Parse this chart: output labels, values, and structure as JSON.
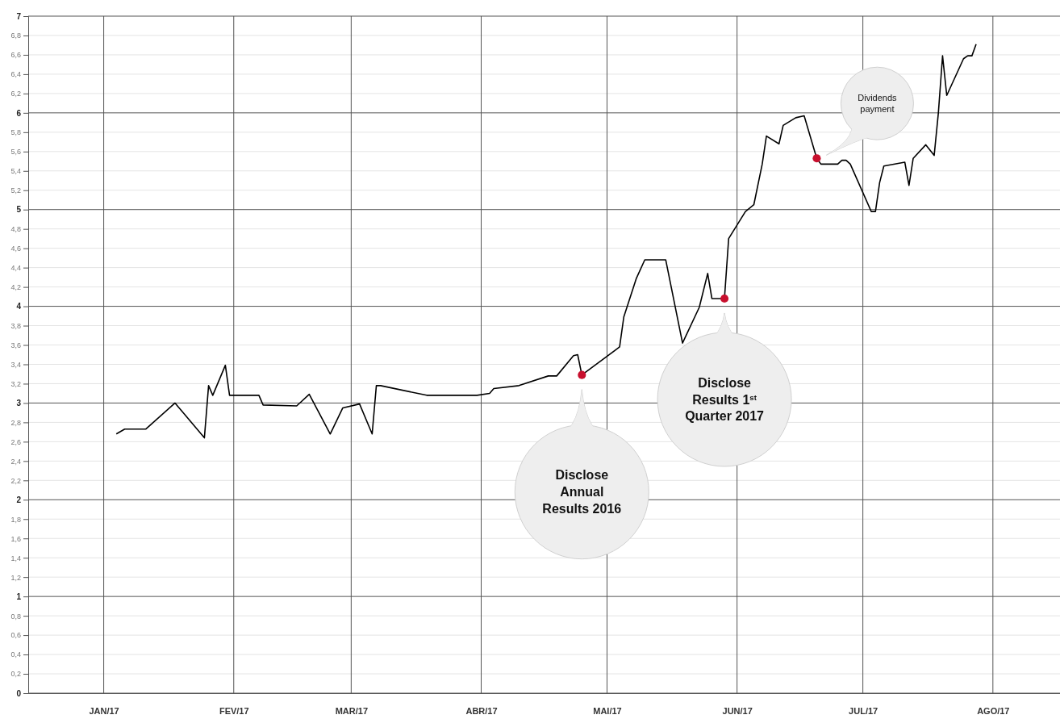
{
  "chart_data": {
    "type": "line",
    "x": [
      "2017-01-04",
      "2017-01-06",
      "2017-01-11",
      "2017-01-18",
      "2017-01-25",
      "2017-01-26",
      "2017-01-27",
      "2017-01-30",
      "2017-01-31",
      "2017-02-07",
      "2017-02-08",
      "2017-02-16",
      "2017-02-19",
      "2017-02-24",
      "2017-02-27",
      "2017-03-03",
      "2017-03-06",
      "2017-03-07",
      "2017-03-08",
      "2017-03-19",
      "2017-03-22",
      "2017-03-31",
      "2017-04-03",
      "2017-04-04",
      "2017-04-10",
      "2017-04-17",
      "2017-04-19",
      "2017-04-23",
      "2017-04-24",
      "2017-04-25",
      "2017-05-04",
      "2017-05-05",
      "2017-05-08",
      "2017-05-10",
      "2017-05-15",
      "2017-05-19",
      "2017-05-23",
      "2017-05-25",
      "2017-05-26",
      "2017-05-29",
      "2017-05-30",
      "2017-06-03",
      "2017-06-05",
      "2017-06-07",
      "2017-06-08",
      "2017-06-11",
      "2017-06-12",
      "2017-06-15",
      "2017-06-17",
      "2017-06-20",
      "2017-06-21",
      "2017-06-25",
      "2017-06-26",
      "2017-06-27",
      "2017-06-28",
      "2017-07-03",
      "2017-07-04",
      "2017-07-05",
      "2017-07-06",
      "2017-07-11",
      "2017-07-12",
      "2017-07-13",
      "2017-07-16",
      "2017-07-18",
      "2017-07-19",
      "2017-07-20",
      "2017-07-21",
      "2017-07-25",
      "2017-07-26",
      "2017-07-27",
      "2017-07-28"
    ],
    "series": [
      {
        "color": "#000000",
        "values": [
          2.68,
          2.73,
          2.73,
          3.0,
          2.64,
          3.18,
          3.08,
          3.39,
          3.08,
          3.08,
          2.98,
          2.97,
          3.09,
          2.68,
          2.95,
          2.99,
          2.68,
          3.18,
          3.18,
          3.08,
          3.08,
          3.08,
          3.1,
          3.15,
          3.18,
          3.28,
          3.28,
          3.49,
          3.5,
          3.29,
          3.58,
          3.89,
          4.29,
          4.48,
          4.48,
          3.62,
          3.99,
          4.34,
          4.08,
          4.08,
          4.7,
          4.98,
          5.05,
          5.47,
          5.76,
          5.68,
          5.87,
          5.95,
          5.97,
          5.53,
          5.47,
          5.47,
          5.51,
          5.51,
          5.47,
          4.98,
          4.98,
          5.28,
          5.45,
          5.49,
          5.25,
          5.53,
          5.67,
          5.56,
          6.0,
          6.59,
          6.18,
          6.56,
          6.59,
          6.59,
          6.71
        ]
      },
      {
        "type": "scatter",
        "color": "#c8102e",
        "marker": "circle",
        "x": [
          "2017-04-25",
          "2017-05-29",
          "2017-06-20"
        ],
        "values": [
          3.29,
          4.08,
          5.53
        ]
      }
    ],
    "xlim": [
      "2016-12-14",
      "2017-08-17"
    ],
    "xticks": [
      {
        "value": "2017-01-01",
        "label": "JAN/17"
      },
      {
        "value": "2017-02-01",
        "label": "FEV/17"
      },
      {
        "value": "2017-03-01",
        "label": "MAR/17"
      },
      {
        "value": "2017-04-01",
        "label": "ABR/17"
      },
      {
        "value": "2017-05-01",
        "label": "MAI/17"
      },
      {
        "value": "2017-06-01",
        "label": "JUN/17"
      },
      {
        "value": "2017-07-01",
        "label": "JUL/17"
      },
      {
        "value": "2017-08-01",
        "label": "AGO/17"
      }
    ],
    "ylim": [
      0,
      7
    ],
    "yticks": [
      0,
      {
        "value": 0.2,
        "label": "0,2"
      },
      {
        "value": 0.4,
        "label": "0,4"
      },
      {
        "value": 0.6,
        "label": "0,6"
      },
      {
        "value": 0.8,
        "label": "0,8"
      },
      1,
      {
        "value": 1.2,
        "label": "1,2"
      },
      {
        "value": 1.4,
        "label": "1,4"
      },
      {
        "value": 1.6,
        "label": "1,6"
      },
      {
        "value": 1.8,
        "label": "1,8"
      },
      2,
      {
        "value": 2.2,
        "label": "2,2"
      },
      {
        "value": 2.4,
        "label": "2,4"
      },
      {
        "value": 2.6,
        "label": "2,6"
      },
      {
        "value": 2.8,
        "label": "2,8"
      },
      3,
      {
        "value": 3.2,
        "label": "3,2"
      },
      {
        "value": 3.4,
        "label": "3,4"
      },
      {
        "value": 3.6,
        "label": "3,6"
      },
      {
        "value": 3.8,
        "label": "3,8"
      },
      4,
      {
        "value": 4.2,
        "label": "4,2"
      },
      {
        "value": 4.4,
        "label": "4,4"
      },
      {
        "value": 4.6,
        "label": "4,6"
      },
      {
        "value": 4.8,
        "label": "4,8"
      },
      5,
      {
        "value": 5.2,
        "label": "5,2"
      },
      {
        "value": 5.4,
        "label": "5,4"
      },
      {
        "value": 5.6,
        "label": "5,6"
      },
      {
        "value": 5.8,
        "label": "5,8"
      },
      6,
      {
        "value": 6.2,
        "label": "6,2"
      },
      {
        "value": 6.4,
        "label": "6,4"
      },
      {
        "value": 6.6,
        "label": "6,6"
      },
      {
        "value": 6.8,
        "label": "6,8"
      },
      7
    ],
    "grid": true,
    "marker": "none",
    "line_style": "solid",
    "annotations": [
      "Disclose Annual Results 2016",
      "Disclose Results 1$^{st}$ Quarter 2017",
      "Dividends payment"
    ]
  }
}
